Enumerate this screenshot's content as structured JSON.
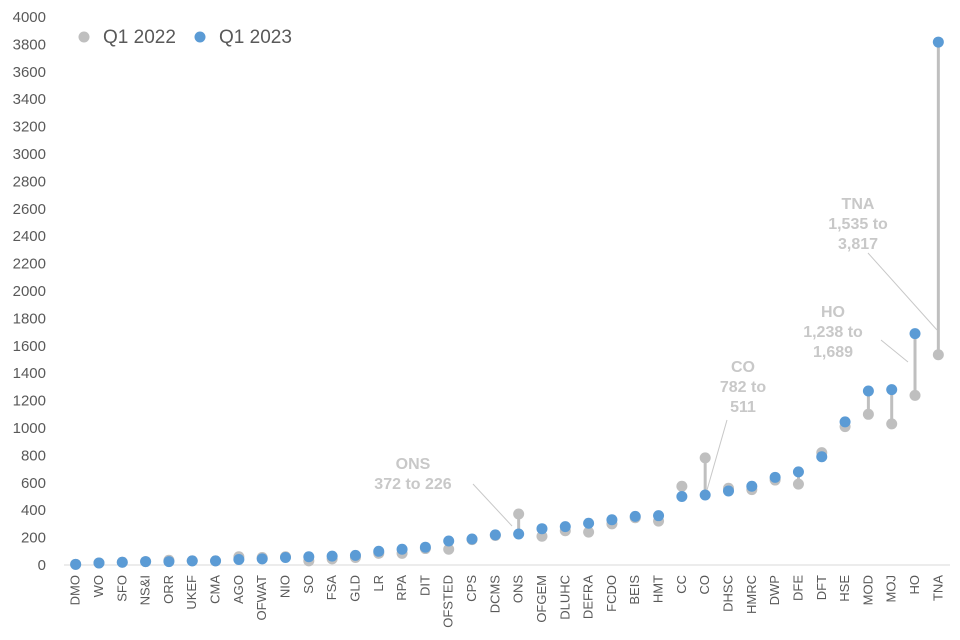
{
  "chart_data": {
    "type": "scatter",
    "title": "",
    "xlabel": "",
    "ylabel": "",
    "ylim": [
      0,
      4000
    ],
    "yticks": [
      0,
      200,
      400,
      600,
      800,
      1000,
      1200,
      1400,
      1600,
      1800,
      2000,
      2200,
      2400,
      2600,
      2800,
      3000,
      3200,
      3400,
      3600,
      3800,
      4000
    ],
    "grid": false,
    "legend_position": "top-left",
    "categories": [
      "DMO",
      "WO",
      "SFO",
      "NS&I",
      "ORR",
      "UKEF",
      "CMA",
      "AGO",
      "OFWAT",
      "NIO",
      "SO",
      "FSA",
      "GLD",
      "LR",
      "RPA",
      "DIT",
      "OFSTED",
      "CPS",
      "DCMS",
      "ONS",
      "OFGEM",
      "DLUHC",
      "DEFRA",
      "FCDO",
      "BEIS",
      "HMT",
      "CC",
      "CO",
      "DHSC",
      "HMRC",
      "DWP",
      "DFE",
      "DFT",
      "HSE",
      "MOD",
      "MOJ",
      "HO",
      "TNA"
    ],
    "series": [
      {
        "name": "Q1 2022",
        "color": "#bfbfbf",
        "values": [
          5,
          15,
          20,
          25,
          35,
          30,
          30,
          60,
          55,
          60,
          30,
          45,
          55,
          85,
          85,
          120,
          115,
          185,
          215,
          372,
          210,
          250,
          240,
          300,
          345,
          320,
          575,
          782,
          560,
          550,
          620,
          590,
          820,
          1010,
          1100,
          1030,
          1238,
          1535
        ]
      },
      {
        "name": "Q1 2023",
        "color": "#5b9bd5",
        "values": [
          5,
          15,
          20,
          25,
          25,
          30,
          30,
          40,
          45,
          55,
          60,
          65,
          70,
          100,
          115,
          130,
          175,
          190,
          220,
          226,
          265,
          280,
          305,
          330,
          355,
          360,
          500,
          511,
          540,
          575,
          640,
          680,
          790,
          1045,
          1270,
          1280,
          1689,
          3817
        ]
      }
    ],
    "annotations": [
      {
        "category": "ONS",
        "lines": [
          "ONS",
          "372 to 226"
        ]
      },
      {
        "category": "CO",
        "lines": [
          "CO",
          "782 to",
          "511"
        ]
      },
      {
        "category": "HO",
        "lines": [
          "HO",
          "1,238 to",
          "1,689"
        ]
      },
      {
        "category": "TNA",
        "lines": [
          "TNA",
          "1,535 to",
          "3,817"
        ]
      }
    ]
  }
}
